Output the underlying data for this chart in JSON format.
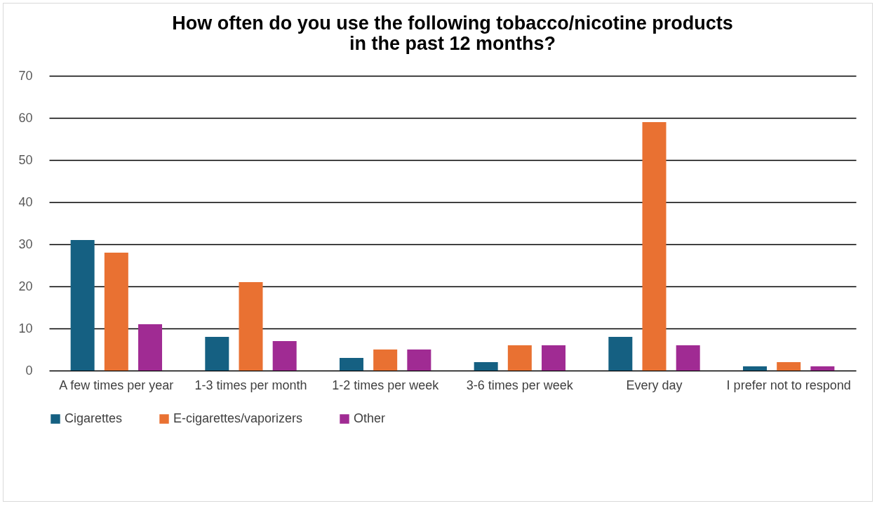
{
  "chart_data": {
    "type": "bar",
    "title": "How often do you use the following tobacco/nicotine products in the past 12 months?",
    "categories": [
      "A few times per year",
      "1-3 times per month",
      "1-2 times per week",
      "3-6 times per week",
      "Every day",
      "I prefer not to respond"
    ],
    "series": [
      {
        "name": "Cigarettes",
        "color": "#156082",
        "values": [
          31,
          8,
          3,
          2,
          8,
          1
        ]
      },
      {
        "name": "E-cigarettes/vaporizers",
        "color": "#e97132",
        "values": [
          28,
          21,
          5,
          6,
          59,
          2
        ]
      },
      {
        "name": "Other",
        "color": "#a02b93",
        "values": [
          11,
          7,
          5,
          6,
          6,
          1
        ]
      }
    ],
    "ylim": [
      0,
      70
    ],
    "yticks": [
      0,
      10,
      20,
      30,
      40,
      50,
      60,
      70
    ],
    "grid": "y",
    "legend": "bottom"
  }
}
